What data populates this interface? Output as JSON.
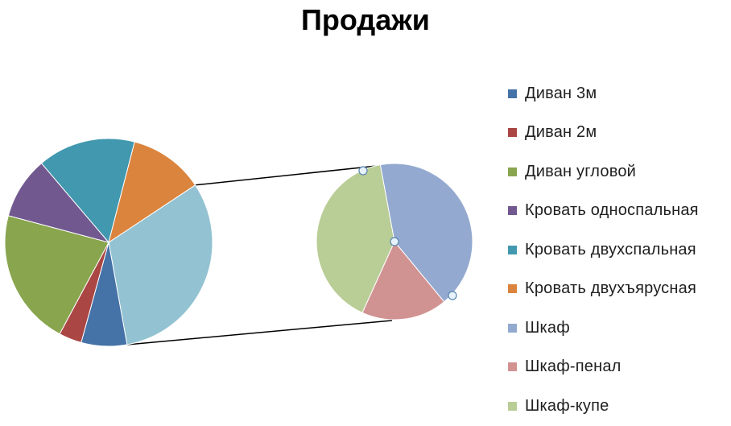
{
  "chart_data": {
    "type": "pie",
    "subtype": "pie-of-pie",
    "title": "Продажи",
    "legend_position": "right",
    "series": [
      {
        "name": "Диван 3м",
        "value": 7,
        "color": "#4572A7",
        "group": "main"
      },
      {
        "name": "Диван 2м",
        "value": 3.5,
        "color": "#AA4643",
        "group": "main"
      },
      {
        "name": "Диван угловой",
        "value": 21,
        "color": "#89A54E",
        "group": "main"
      },
      {
        "name": "Кровать односпальная",
        "value": 9.5,
        "color": "#71588F",
        "group": "main"
      },
      {
        "name": "Кровать двухспальная",
        "value": 15,
        "color": "#4198AF",
        "group": "main"
      },
      {
        "name": "Кровать двухъярусная",
        "value": 11.5,
        "color": "#DB843D",
        "group": "main"
      },
      {
        "name": "Шкаф",
        "value": 13,
        "color": "#93A9CF",
        "group": "secondary"
      },
      {
        "name": "Шкаф-пенал",
        "value": 5.5,
        "color": "#D19392",
        "group": "secondary"
      },
      {
        "name": "Шкаф-купе",
        "value": 12.5,
        "color": "#B9CD96",
        "group": "secondary"
      }
    ],
    "other_slice_color": "#93C3D2"
  }
}
